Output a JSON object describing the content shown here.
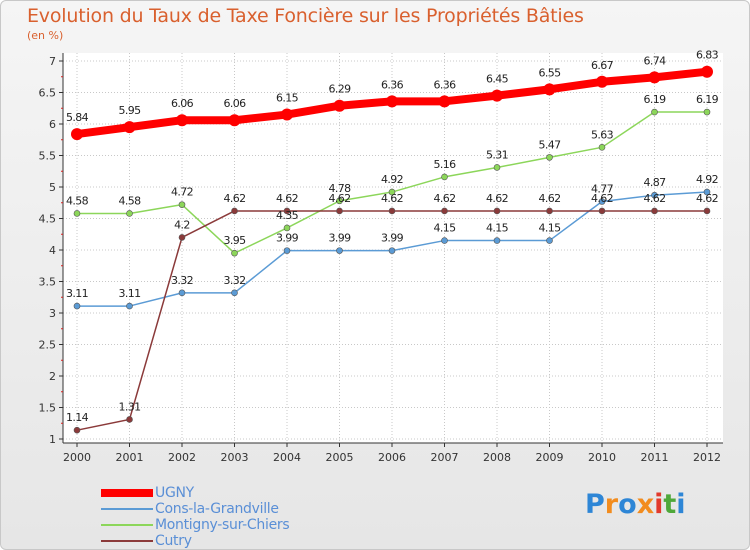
{
  "title": "Evolution du Taux de Taxe Foncière sur les Propriétés Bâties",
  "unit_label": "(en %)",
  "logo": {
    "text": "Proxiti",
    "colors": [
      "#2e86d6",
      "#f28c1e",
      "#2e86d6",
      "#f28c1e",
      "#e23a2c",
      "#4fa83a",
      "#2e86d6"
    ]
  },
  "chart_data": {
    "type": "line",
    "title": "Evolution du Taux de Taxe Foncière sur les Propriétés Bâties",
    "ylabel": "(en %)",
    "xlabel": "",
    "ylim": [
      1,
      7
    ],
    "yticks": [
      1,
      1.5,
      2,
      2.5,
      3,
      3.5,
      4,
      4.5,
      5,
      5.5,
      6,
      6.5,
      7
    ],
    "x": [
      "2000",
      "2001",
      "2002",
      "2003",
      "2004",
      "2005",
      "2006",
      "2007",
      "2008",
      "2009",
      "2010",
      "2011",
      "2012"
    ],
    "legend_position": "bottom-left",
    "grid": true,
    "series": [
      {
        "name": "UGNY",
        "color": "#ff0000",
        "values": [
          5.84,
          5.95,
          6.06,
          6.06,
          6.15,
          6.29,
          6.36,
          6.36,
          6.45,
          6.55,
          6.67,
          6.74,
          6.83
        ],
        "labels": [
          "5.84",
          "5.95",
          "6.06",
          "6.06",
          "6.15",
          "6.29",
          "6.36",
          "6.36",
          "6.45",
          "6.55",
          "6.67",
          "6.74",
          "6.83"
        ]
      },
      {
        "name": "Cons-la-Grandville",
        "color": "#5b9bd5",
        "values": [
          3.11,
          3.11,
          3.32,
          3.32,
          3.99,
          3.99,
          3.99,
          4.15,
          4.15,
          4.15,
          4.77,
          4.87,
          4.92
        ],
        "labels": [
          "3.11",
          "3.11",
          "3.32",
          "3.32",
          "3.99",
          "3.99",
          "3.99",
          "4.15",
          "4.15",
          "4.15",
          "4.77",
          "4.87",
          "4.92"
        ]
      },
      {
        "name": "Montigny-sur-Chiers",
        "color": "#8cd65a",
        "values": [
          4.58,
          4.58,
          4.72,
          3.95,
          4.35,
          4.78,
          4.92,
          5.16,
          5.31,
          5.47,
          5.63,
          6.19,
          6.19
        ],
        "labels": [
          "4.58",
          "4.58",
          "4.72",
          "3.95",
          "4.35",
          "4.78",
          "4.92",
          "5.16",
          "5.31",
          "5.47",
          "5.63",
          "6.19",
          "6.19"
        ]
      },
      {
        "name": "Cutry",
        "color": "#8b3a3a",
        "values": [
          1.14,
          1.31,
          4.2,
          4.62,
          4.62,
          4.62,
          4.62,
          4.62,
          4.62,
          4.62,
          4.62,
          4.62,
          4.62
        ],
        "labels": [
          "1.14",
          "1.31",
          "4.2",
          "4.62",
          "4.62",
          "4.62",
          "4.62",
          "4.62",
          "4.62",
          "4.62",
          "4.62",
          "4.62",
          "4.62"
        ]
      }
    ]
  }
}
